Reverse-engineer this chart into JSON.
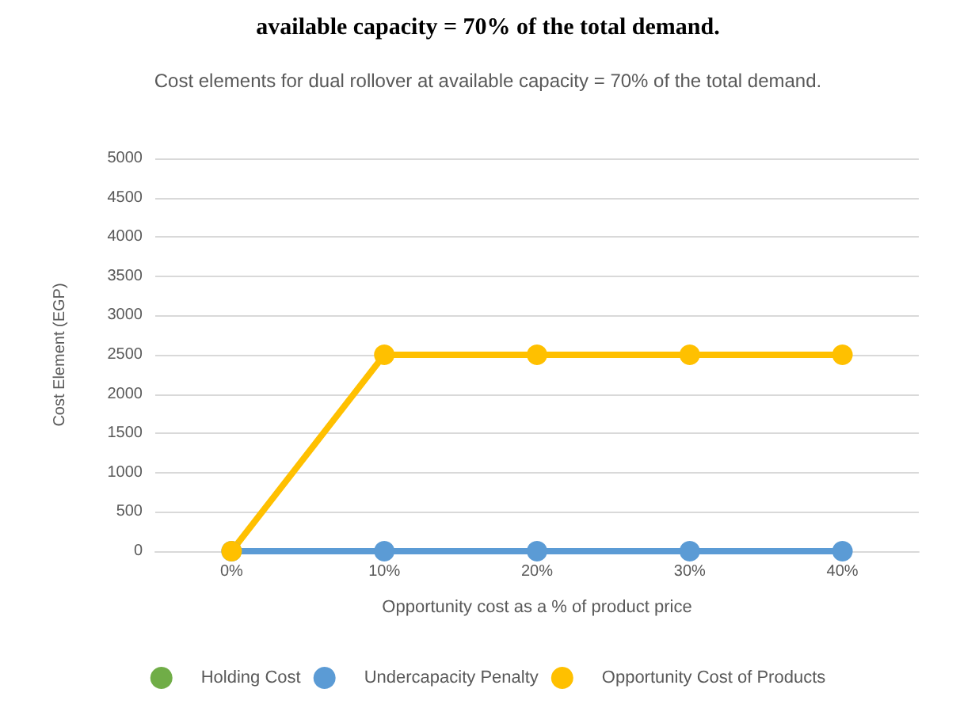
{
  "chart_data": {
    "type": "line",
    "title": "Cost elements for dual rollover at available capacity = 70% of the total demand.",
    "annotations": [
      "available capacity = 70% of the total demand."
    ],
    "xlabel": "Opportunity cost as a % of product price",
    "ylabel": "Cost Element (EGP)",
    "categories": [
      "0%",
      "10%",
      "20%",
      "30%",
      "40%"
    ],
    "series": [
      {
        "name": "Holding Cost",
        "color": "#70ad47",
        "values": [
          null,
          null,
          null,
          null,
          null
        ]
      },
      {
        "name": "Undercapacity Penalty",
        "color": "#5b9bd5",
        "values": [
          0,
          0,
          0,
          0,
          0
        ]
      },
      {
        "name": "Opportunity Cost of Products",
        "color": "#ffc000",
        "values": [
          0,
          2500,
          2500,
          2500,
          2500
        ]
      }
    ],
    "ylim": [
      0,
      5000
    ],
    "yticks": [
      0,
      500,
      1000,
      1500,
      2000,
      2500,
      3000,
      3500,
      4000,
      4500,
      5000
    ],
    "grid": "y",
    "legend": "bottom",
    "marker": "circle",
    "line_style": "solid"
  }
}
